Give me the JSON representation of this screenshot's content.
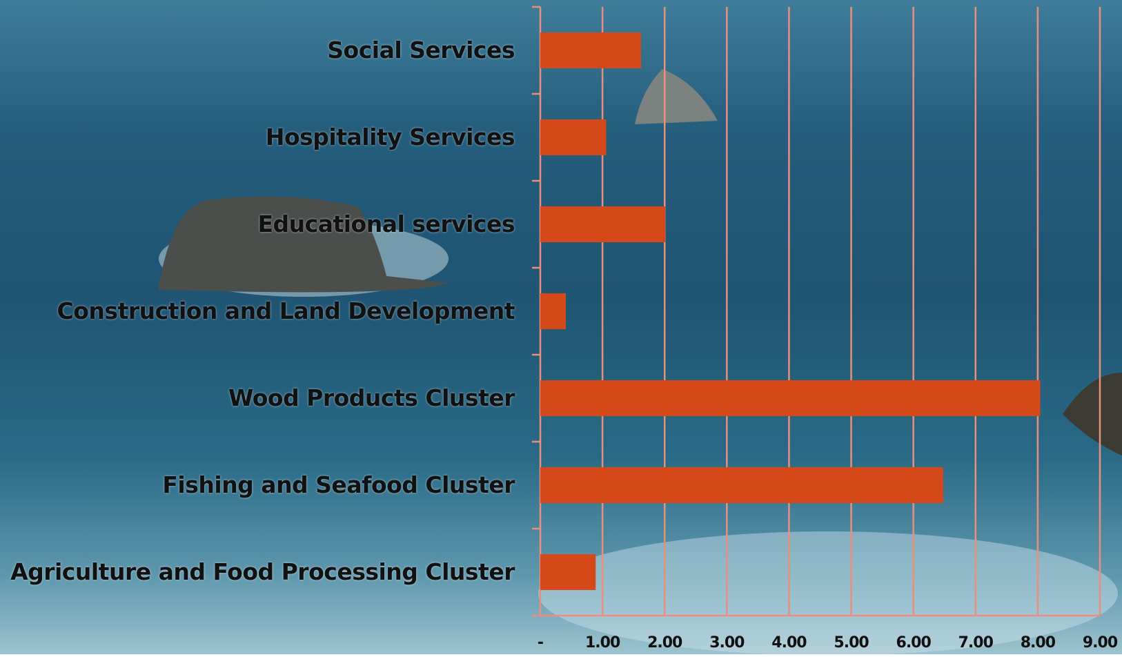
{
  "chart_data": {
    "type": "bar",
    "orientation": "horizontal",
    "categories": [
      "Social Services",
      "Hospitality Services",
      "Educational services",
      "Construction and Land Development",
      "Wood Products Cluster",
      "Fishing and Seafood Cluster",
      "Agriculture and Food Processing Cluster"
    ],
    "values": [
      1.62,
      1.06,
      2.01,
      0.41,
      8.04,
      6.48,
      0.89
    ],
    "color": "#d4481a",
    "xlim": [
      0,
      9
    ],
    "xticks": [
      {
        "value": 0,
        "label": "-"
      },
      {
        "value": 1,
        "label": "1.00"
      },
      {
        "value": 2,
        "label": "2.00"
      },
      {
        "value": 3,
        "label": "3.00"
      },
      {
        "value": 4,
        "label": "4.00"
      },
      {
        "value": 5,
        "label": "5.00"
      },
      {
        "value": 6,
        "label": "6.00"
      },
      {
        "value": 7,
        "label": "7.00"
      },
      {
        "value": 8,
        "label": "8.00"
      },
      {
        "value": 9,
        "label": "9.00"
      }
    ],
    "grid": true
  }
}
